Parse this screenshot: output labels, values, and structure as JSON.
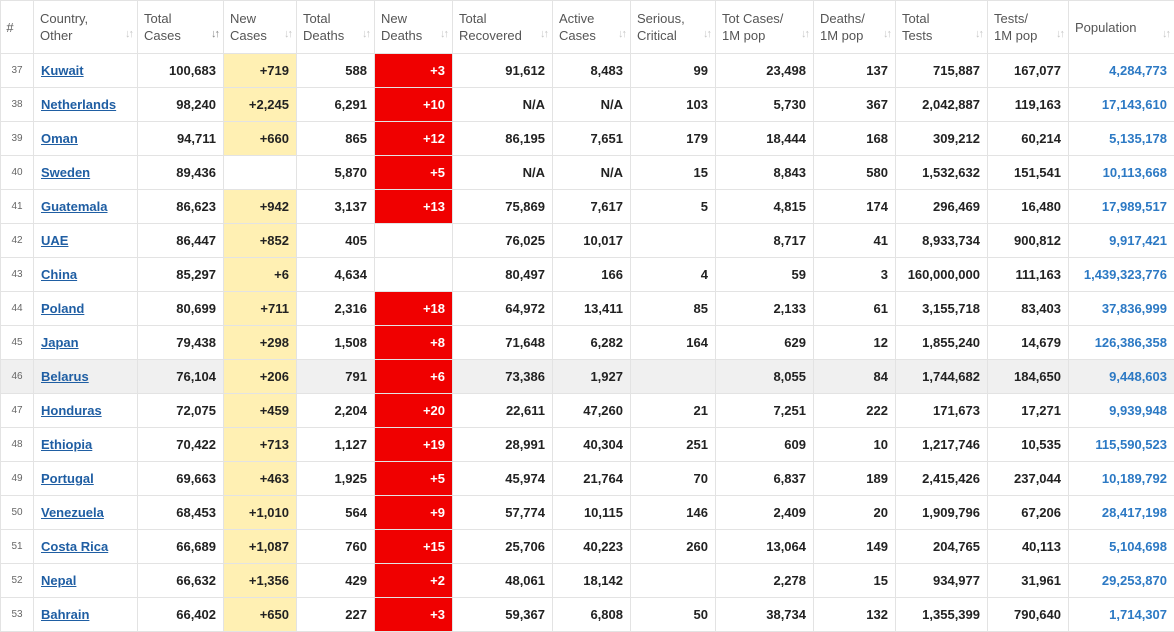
{
  "columns": [
    {
      "label": "#",
      "sortable": false
    },
    {
      "label": "Country,\nOther",
      "sortable": true
    },
    {
      "label": "Total\nCases",
      "sortable": true,
      "active": true
    },
    {
      "label": "New\nCases",
      "sortable": true
    },
    {
      "label": "Total\nDeaths",
      "sortable": true
    },
    {
      "label": "New\nDeaths",
      "sortable": true
    },
    {
      "label": "Total\nRecovered",
      "sortable": true
    },
    {
      "label": "Active\nCases",
      "sortable": true
    },
    {
      "label": "Serious,\nCritical",
      "sortable": true
    },
    {
      "label": "Tot Cases/\n1M pop",
      "sortable": true
    },
    {
      "label": "Deaths/\n1M pop",
      "sortable": true
    },
    {
      "label": "Total\nTests",
      "sortable": true
    },
    {
      "label": "Tests/\n1M pop",
      "sortable": true
    },
    {
      "label": "Population",
      "sortable": true
    }
  ],
  "sort_icons": {
    "default": "↓↑",
    "active": "↓↑"
  },
  "colors": {
    "new_cases_bg": "#fff0b3",
    "new_deaths_bg": "#f00000",
    "link": "#1f5ea3",
    "population_link": "#2c79c4",
    "highlight_row": "#f0f0f0"
  },
  "rows": [
    {
      "rank": "37",
      "country": "Kuwait",
      "total_cases": "100,683",
      "new_cases": "+719",
      "total_deaths": "588",
      "new_deaths": "+3",
      "total_recovered": "91,612",
      "active_cases": "8,483",
      "serious": "99",
      "cases_per_1m": "23,498",
      "deaths_per_1m": "137",
      "total_tests": "715,887",
      "tests_per_1m": "167,077",
      "population": "4,284,773"
    },
    {
      "rank": "38",
      "country": "Netherlands",
      "total_cases": "98,240",
      "new_cases": "+2,245",
      "total_deaths": "6,291",
      "new_deaths": "+10",
      "total_recovered": "N/A",
      "active_cases": "N/A",
      "serious": "103",
      "cases_per_1m": "5,730",
      "deaths_per_1m": "367",
      "total_tests": "2,042,887",
      "tests_per_1m": "119,163",
      "population": "17,143,610"
    },
    {
      "rank": "39",
      "country": "Oman",
      "total_cases": "94,711",
      "new_cases": "+660",
      "total_deaths": "865",
      "new_deaths": "+12",
      "total_recovered": "86,195",
      "active_cases": "7,651",
      "serious": "179",
      "cases_per_1m": "18,444",
      "deaths_per_1m": "168",
      "total_tests": "309,212",
      "tests_per_1m": "60,214",
      "population": "5,135,178"
    },
    {
      "rank": "40",
      "country": "Sweden",
      "total_cases": "89,436",
      "new_cases": "",
      "total_deaths": "5,870",
      "new_deaths": "+5",
      "total_recovered": "N/A",
      "active_cases": "N/A",
      "serious": "15",
      "cases_per_1m": "8,843",
      "deaths_per_1m": "580",
      "total_tests": "1,532,632",
      "tests_per_1m": "151,541",
      "population": "10,113,668"
    },
    {
      "rank": "41",
      "country": "Guatemala",
      "total_cases": "86,623",
      "new_cases": "+942",
      "total_deaths": "3,137",
      "new_deaths": "+13",
      "total_recovered": "75,869",
      "active_cases": "7,617",
      "serious": "5",
      "cases_per_1m": "4,815",
      "deaths_per_1m": "174",
      "total_tests": "296,469",
      "tests_per_1m": "16,480",
      "population": "17,989,517"
    },
    {
      "rank": "42",
      "country": "UAE",
      "total_cases": "86,447",
      "new_cases": "+852",
      "total_deaths": "405",
      "new_deaths": "",
      "total_recovered": "76,025",
      "active_cases": "10,017",
      "serious": "",
      "cases_per_1m": "8,717",
      "deaths_per_1m": "41",
      "total_tests": "8,933,734",
      "tests_per_1m": "900,812",
      "population": "9,917,421"
    },
    {
      "rank": "43",
      "country": "China",
      "total_cases": "85,297",
      "new_cases": "+6",
      "total_deaths": "4,634",
      "new_deaths": "",
      "total_recovered": "80,497",
      "active_cases": "166",
      "serious": "4",
      "cases_per_1m": "59",
      "deaths_per_1m": "3",
      "total_tests": "160,000,000",
      "tests_per_1m": "111,163",
      "population": "1,439,323,776"
    },
    {
      "rank": "44",
      "country": "Poland",
      "total_cases": "80,699",
      "new_cases": "+711",
      "total_deaths": "2,316",
      "new_deaths": "+18",
      "total_recovered": "64,972",
      "active_cases": "13,411",
      "serious": "85",
      "cases_per_1m": "2,133",
      "deaths_per_1m": "61",
      "total_tests": "3,155,718",
      "tests_per_1m": "83,403",
      "population": "37,836,999"
    },
    {
      "rank": "45",
      "country": "Japan",
      "total_cases": "79,438",
      "new_cases": "+298",
      "total_deaths": "1,508",
      "new_deaths": "+8",
      "total_recovered": "71,648",
      "active_cases": "6,282",
      "serious": "164",
      "cases_per_1m": "629",
      "deaths_per_1m": "12",
      "total_tests": "1,855,240",
      "tests_per_1m": "14,679",
      "population": "126,386,358"
    },
    {
      "rank": "46",
      "country": "Belarus",
      "total_cases": "76,104",
      "new_cases": "+206",
      "total_deaths": "791",
      "new_deaths": "+6",
      "total_recovered": "73,386",
      "active_cases": "1,927",
      "serious": "",
      "cases_per_1m": "8,055",
      "deaths_per_1m": "84",
      "total_tests": "1,744,682",
      "tests_per_1m": "184,650",
      "population": "9,448,603",
      "highlight": true
    },
    {
      "rank": "47",
      "country": "Honduras",
      "total_cases": "72,075",
      "new_cases": "+459",
      "total_deaths": "2,204",
      "new_deaths": "+20",
      "total_recovered": "22,611",
      "active_cases": "47,260",
      "serious": "21",
      "cases_per_1m": "7,251",
      "deaths_per_1m": "222",
      "total_tests": "171,673",
      "tests_per_1m": "17,271",
      "population": "9,939,948"
    },
    {
      "rank": "48",
      "country": "Ethiopia",
      "total_cases": "70,422",
      "new_cases": "+713",
      "total_deaths": "1,127",
      "new_deaths": "+19",
      "total_recovered": "28,991",
      "active_cases": "40,304",
      "serious": "251",
      "cases_per_1m": "609",
      "deaths_per_1m": "10",
      "total_tests": "1,217,746",
      "tests_per_1m": "10,535",
      "population": "115,590,523"
    },
    {
      "rank": "49",
      "country": "Portugal",
      "total_cases": "69,663",
      "new_cases": "+463",
      "total_deaths": "1,925",
      "new_deaths": "+5",
      "total_recovered": "45,974",
      "active_cases": "21,764",
      "serious": "70",
      "cases_per_1m": "6,837",
      "deaths_per_1m": "189",
      "total_tests": "2,415,426",
      "tests_per_1m": "237,044",
      "population": "10,189,792"
    },
    {
      "rank": "50",
      "country": "Venezuela",
      "total_cases": "68,453",
      "new_cases": "+1,010",
      "total_deaths": "564",
      "new_deaths": "+9",
      "total_recovered": "57,774",
      "active_cases": "10,115",
      "serious": "146",
      "cases_per_1m": "2,409",
      "deaths_per_1m": "20",
      "total_tests": "1,909,796",
      "tests_per_1m": "67,206",
      "population": "28,417,198"
    },
    {
      "rank": "51",
      "country": "Costa Rica",
      "total_cases": "66,689",
      "new_cases": "+1,087",
      "total_deaths": "760",
      "new_deaths": "+15",
      "total_recovered": "25,706",
      "active_cases": "40,223",
      "serious": "260",
      "cases_per_1m": "13,064",
      "deaths_per_1m": "149",
      "total_tests": "204,765",
      "tests_per_1m": "40,113",
      "population": "5,104,698"
    },
    {
      "rank": "52",
      "country": "Nepal",
      "total_cases": "66,632",
      "new_cases": "+1,356",
      "total_deaths": "429",
      "new_deaths": "+2",
      "total_recovered": "48,061",
      "active_cases": "18,142",
      "serious": "",
      "cases_per_1m": "2,278",
      "deaths_per_1m": "15",
      "total_tests": "934,977",
      "tests_per_1m": "31,961",
      "population": "29,253,870"
    },
    {
      "rank": "53",
      "country": "Bahrain",
      "total_cases": "66,402",
      "new_cases": "+650",
      "total_deaths": "227",
      "new_deaths": "+3",
      "total_recovered": "59,367",
      "active_cases": "6,808",
      "serious": "50",
      "cases_per_1m": "38,734",
      "deaths_per_1m": "132",
      "total_tests": "1,355,399",
      "tests_per_1m": "790,640",
      "population": "1,714,307"
    }
  ]
}
